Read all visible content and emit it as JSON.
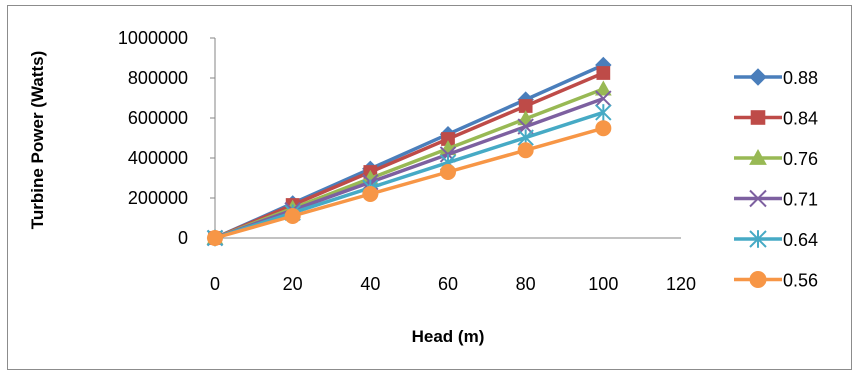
{
  "chart_data": {
    "type": "line",
    "title": "",
    "xlabel": "Head (m)",
    "ylabel": "Turbine Power (Watts)",
    "x": [
      0,
      20,
      40,
      60,
      80,
      100
    ],
    "xlim": [
      0,
      120
    ],
    "ylim": [
      0,
      1000000
    ],
    "x_ticks": [
      0,
      20,
      40,
      60,
      80,
      100,
      120
    ],
    "y_ticks": [
      0,
      200000,
      400000,
      600000,
      800000,
      1000000
    ],
    "grid": false,
    "legend_position": "right",
    "series": [
      {
        "name": "0.88",
        "marker": "diamond",
        "color": "#4a7ebb",
        "values": [
          0,
          173000,
          346000,
          519000,
          692000,
          865000
        ]
      },
      {
        "name": "0.84",
        "marker": "square",
        "color": "#be4b48",
        "values": [
          0,
          165000,
          330000,
          495000,
          660000,
          825000
        ]
      },
      {
        "name": "0.76",
        "marker": "triangle",
        "color": "#98b954",
        "values": [
          0,
          149000,
          298000,
          447000,
          596000,
          745000
        ]
      },
      {
        "name": "0.71",
        "marker": "x",
        "color": "#7d60a0",
        "values": [
          0,
          139000,
          279000,
          418000,
          557000,
          697000
        ]
      },
      {
        "name": "0.64",
        "marker": "star",
        "color": "#46aac5",
        "values": [
          0,
          126000,
          251000,
          377000,
          502000,
          628000
        ]
      },
      {
        "name": "0.56",
        "marker": "circle",
        "color": "#f79646",
        "values": [
          0,
          110000,
          220000,
          330000,
          439000,
          549000
        ]
      }
    ]
  }
}
